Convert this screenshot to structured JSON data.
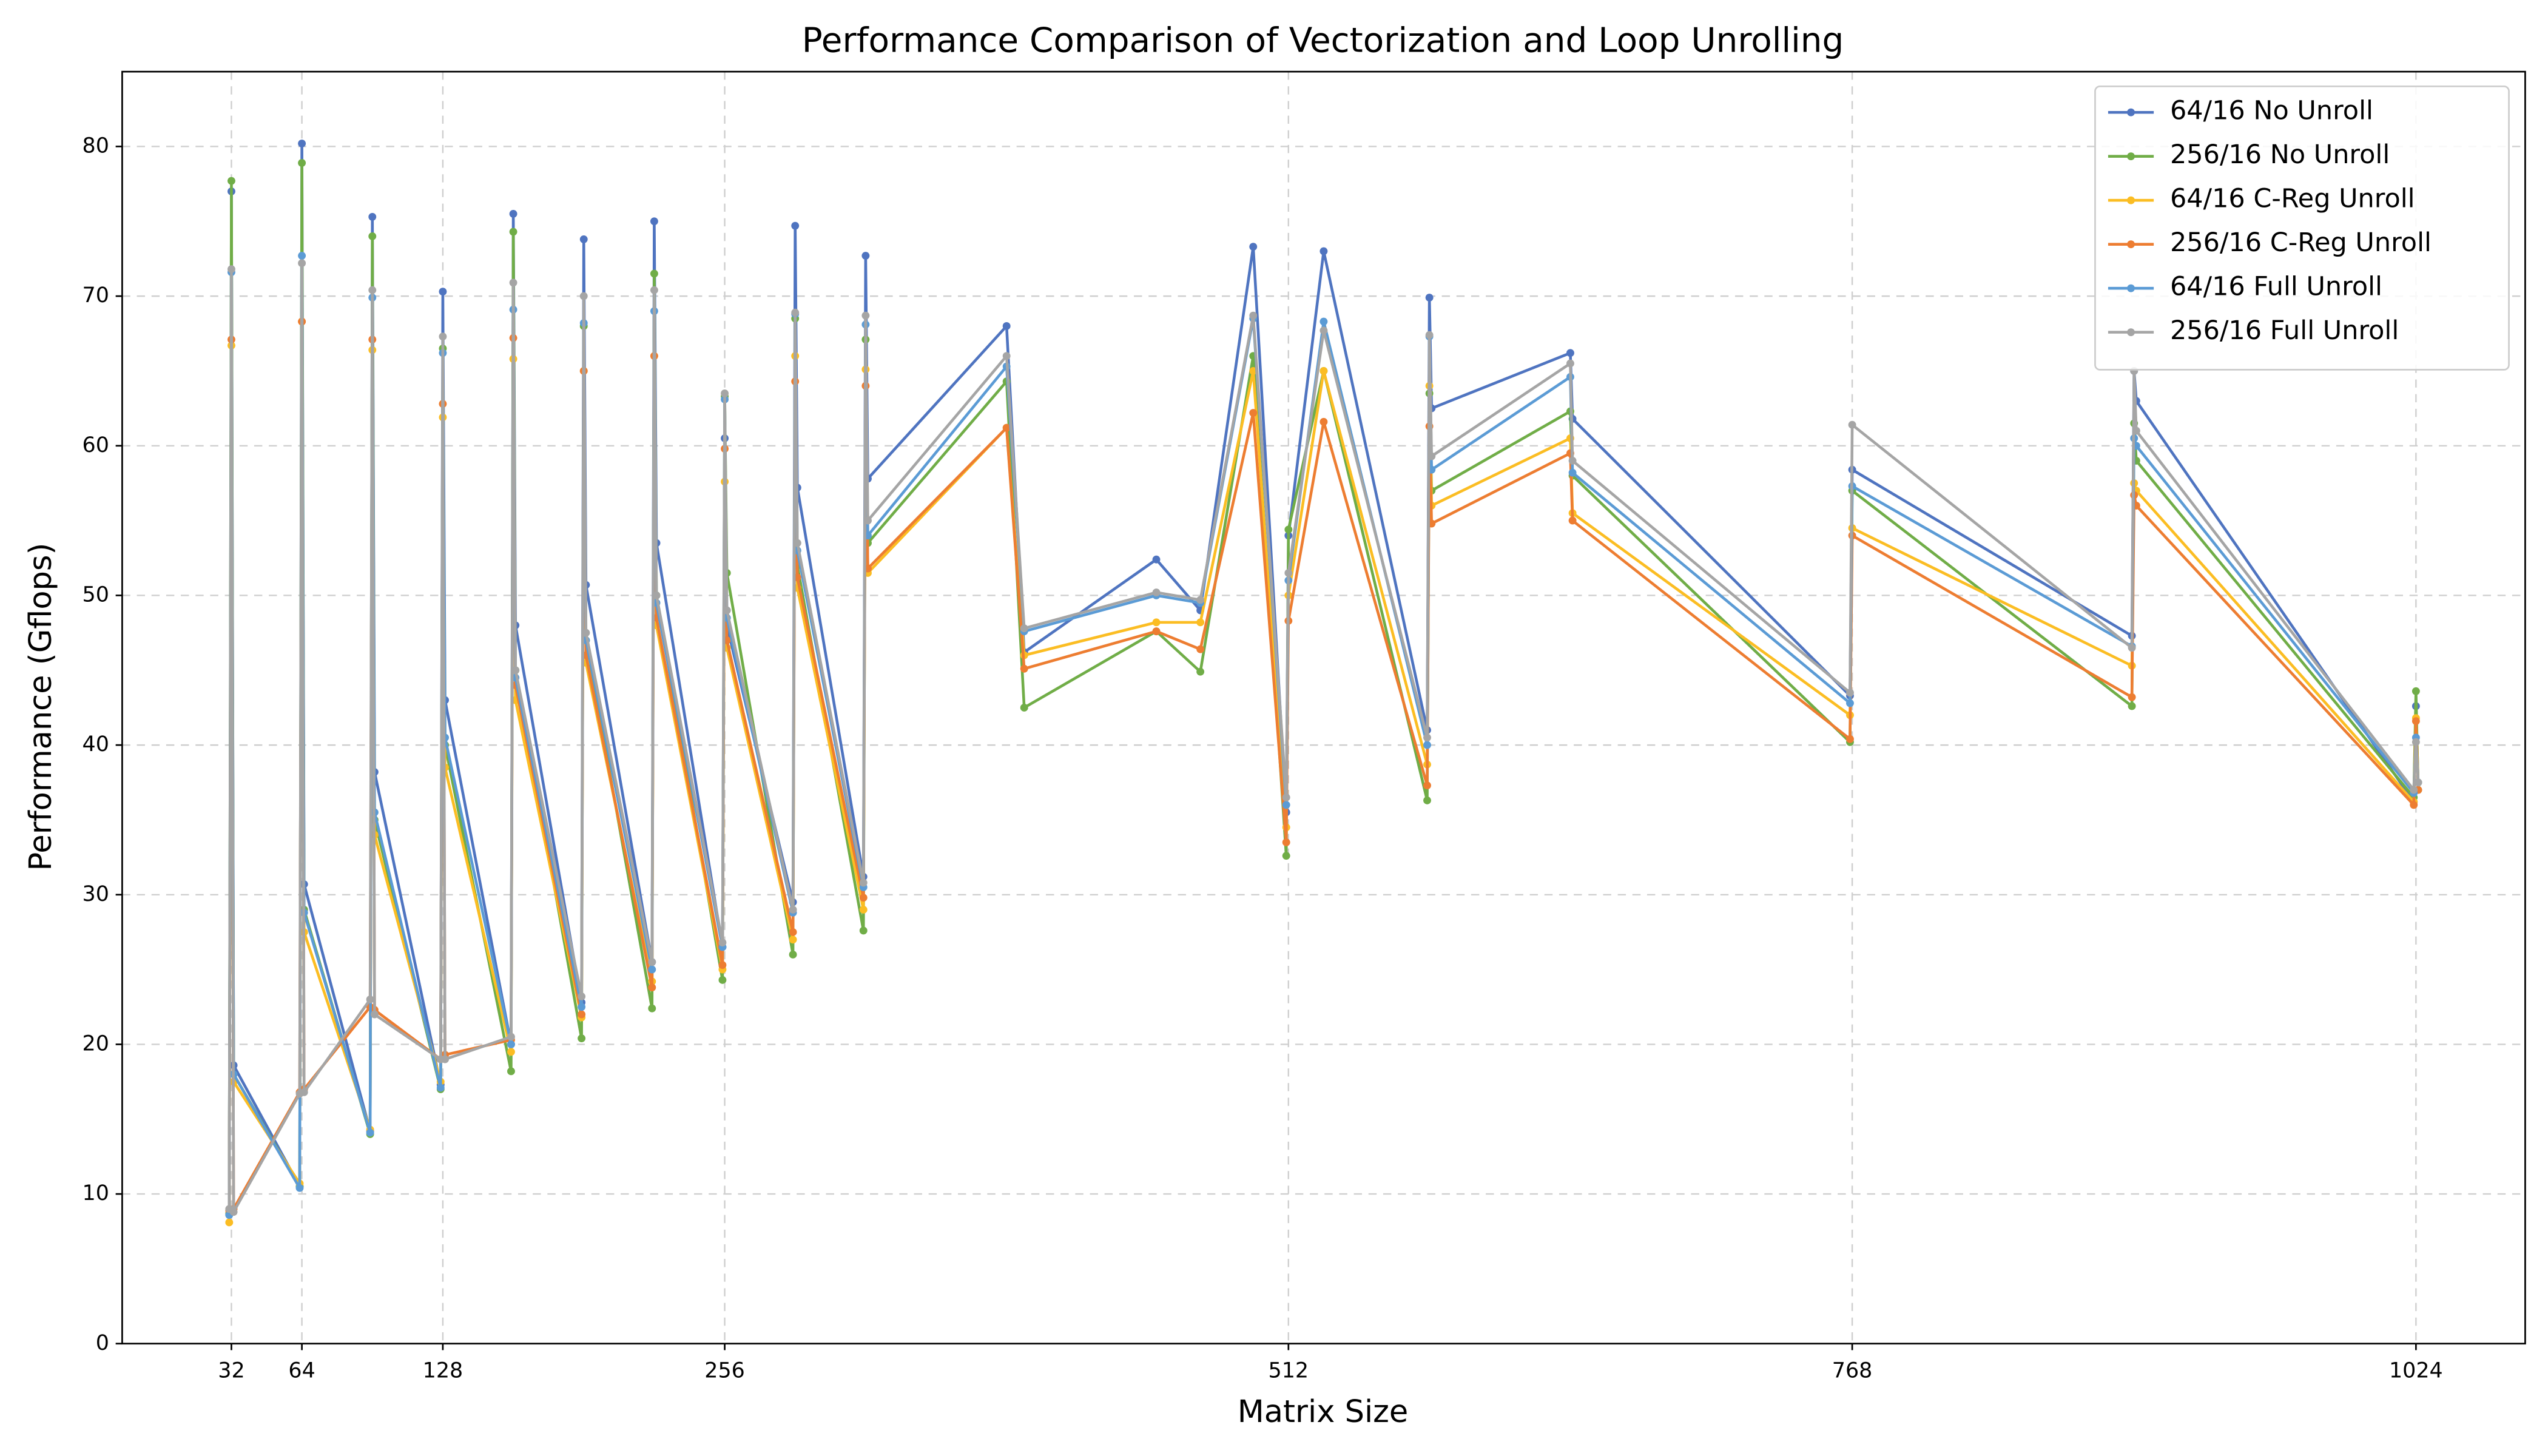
{
  "chart_data": {
    "type": "line",
    "title": "Performance Comparison of Vectorization and Loop Unrolling",
    "xlabel": "Matrix Size",
    "ylabel": "Performance (Gflops)",
    "x": [
      31,
      32,
      33,
      63,
      64,
      65,
      95,
      96,
      97,
      127,
      128,
      129,
      159,
      160,
      161,
      191,
      192,
      193,
      223,
      224,
      225,
      255,
      256,
      257,
      287,
      288,
      289,
      319,
      320,
      321,
      384,
      392,
      452,
      472,
      496,
      511,
      512,
      528,
      575,
      576,
      577,
      640,
      641,
      767,
      768,
      895,
      896,
      897,
      1023,
      1024,
      1025
    ],
    "series": [
      {
        "name": "64/16 No Unroll",
        "color": "#4f74c0",
        "values": [
          8.6,
          77.0,
          18.6,
          10.5,
          80.2,
          30.7,
          14.2,
          75.3,
          38.2,
          17.3,
          70.3,
          43.0,
          20.0,
          75.5,
          48.0,
          22.8,
          73.8,
          50.7,
          25.5,
          75.0,
          53.5,
          26.5,
          60.5,
          48.0,
          29.5,
          74.7,
          57.2,
          31.2,
          72.7,
          57.8,
          68.0,
          46.2,
          52.4,
          49.0,
          73.3,
          35.5,
          54.0,
          73.0,
          41.0,
          69.9,
          62.5,
          66.2,
          61.8,
          43.3,
          58.4,
          47.3,
          65.0,
          63.0,
          36.2,
          42.6,
          37.5
        ]
      },
      {
        "name": "256/16 No Unroll",
        "color": "#70ad47",
        "values": [
          8.7,
          77.7,
          18.0,
          10.5,
          78.9,
          29.0,
          14.0,
          74.0,
          35.0,
          17.0,
          66.5,
          40.0,
          18.2,
          74.3,
          45.0,
          20.4,
          68.0,
          47.0,
          22.4,
          71.5,
          50.0,
          24.3,
          63.3,
          51.5,
          26.0,
          68.5,
          52.0,
          27.6,
          67.1,
          53.5,
          64.3,
          42.5,
          47.6,
          44.9,
          66.0,
          32.6,
          54.4,
          65.0,
          36.3,
          63.5,
          57.0,
          62.3,
          58.0,
          40.2,
          57.0,
          42.6,
          61.5,
          59.0,
          36.5,
          43.6,
          37.0
        ]
      },
      {
        "name": "64/16 C-Reg Unroll",
        "color": "#fbbd23",
        "values": [
          8.1,
          66.7,
          17.5,
          10.7,
          68.3,
          27.5,
          14.3,
          66.4,
          34.0,
          17.5,
          61.9,
          38.5,
          19.5,
          65.8,
          43.0,
          21.8,
          65.0,
          45.5,
          24.2,
          66.0,
          48.0,
          25.0,
          57.6,
          46.5,
          27.0,
          66.0,
          50.5,
          29.0,
          65.1,
          51.5,
          61.2,
          46.0,
          48.2,
          48.2,
          65.0,
          34.5,
          50.0,
          65.0,
          38.7,
          64.0,
          56.0,
          60.5,
          55.5,
          42.0,
          54.5,
          45.3,
          57.5,
          57.0,
          36.2,
          41.8,
          37.5
        ]
      },
      {
        "name": "256/16 C-Reg Unroll",
        "color": "#ed7d31",
        "values": [
          8.9,
          67.1,
          9.0,
          16.8,
          68.3,
          17.0,
          22.5,
          67.1,
          22.3,
          19.0,
          62.8,
          19.3,
          20.3,
          67.2,
          44.0,
          22.0,
          65.0,
          46.0,
          23.8,
          66.0,
          48.5,
          25.3,
          59.8,
          47.0,
          27.5,
          64.3,
          51.2,
          29.8,
          64.0,
          51.8,
          61.2,
          45.1,
          47.6,
          46.4,
          62.2,
          33.5,
          48.3,
          61.6,
          37.3,
          61.3,
          54.8,
          59.5,
          55.0,
          40.4,
          54.0,
          43.2,
          56.7,
          56.0,
          36.0,
          41.6,
          37.0
        ]
      },
      {
        "name": "64/16 Full Unroll",
        "color": "#5b9bd5",
        "values": [
          8.6,
          71.6,
          18.0,
          10.4,
          72.7,
          28.8,
          14.1,
          69.9,
          35.5,
          17.1,
          66.2,
          40.5,
          20.0,
          69.1,
          44.5,
          22.5,
          68.2,
          47.0,
          25.0,
          69.0,
          49.5,
          26.5,
          63.1,
          48.5,
          28.8,
          68.8,
          53.0,
          30.5,
          68.1,
          54.0,
          65.3,
          47.6,
          50.0,
          49.5,
          68.5,
          36.0,
          51.0,
          68.3,
          40.0,
          67.3,
          58.4,
          64.6,
          58.2,
          42.8,
          57.3,
          46.6,
          60.5,
          60.0,
          36.8,
          40.5,
          37.5
        ]
      },
      {
        "name": "256/16 Full Unroll",
        "color": "#a5a5a5",
        "values": [
          9.0,
          71.8,
          8.8,
          16.7,
          72.2,
          16.8,
          23.0,
          70.4,
          22.0,
          19.0,
          67.3,
          19.0,
          20.5,
          70.9,
          45.0,
          23.2,
          70.0,
          47.5,
          25.5,
          70.4,
          50.0,
          26.8,
          63.5,
          49.0,
          29.0,
          68.9,
          53.5,
          30.8,
          68.7,
          55.0,
          66.0,
          47.8,
          50.2,
          49.7,
          68.7,
          36.5,
          51.5,
          67.7,
          40.5,
          67.4,
          59.3,
          65.5,
          59.0,
          43.5,
          61.4,
          46.5,
          65.0,
          61.0,
          37.0,
          40.2,
          37.5
        ]
      }
    ],
    "xlim": [
      -17.6,
      1073.6
    ],
    "ylim": [
      0,
      85
    ],
    "xticks": [
      32,
      64,
      128,
      256,
      512,
      768,
      1024
    ],
    "yticks": [
      0,
      10,
      20,
      30,
      40,
      50,
      60,
      70,
      80
    ],
    "grid": true,
    "legend": "upper right"
  }
}
